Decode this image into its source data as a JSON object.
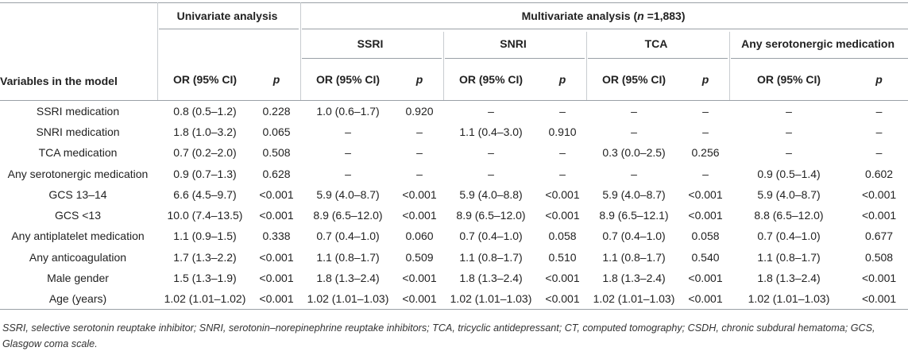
{
  "header": {
    "univariate": "Univariate analysis",
    "multivariate_prefix": "Multivariate analysis (",
    "multivariate_n": "n",
    "multivariate_suffix": " =1,883)",
    "groups": [
      "SSRI",
      "SNRI",
      "TCA",
      "Any serotonergic medication"
    ],
    "variables_label": "Variables in the model",
    "or_label": "OR (95% CI)",
    "p_label": "p"
  },
  "rows": [
    {
      "var": "SSRI medication",
      "cells": [
        "0.8 (0.5–1.2)",
        "0.228",
        "1.0 (0.6–1.7)",
        "0.920",
        "–",
        "–",
        "–",
        "–",
        "–",
        "–"
      ]
    },
    {
      "var": "SNRI medication",
      "cells": [
        "1.8 (1.0–3.2)",
        "0.065",
        "–",
        "–",
        "1.1 (0.4–3.0)",
        "0.910",
        "–",
        "–",
        "–",
        "–"
      ]
    },
    {
      "var": "TCA medication",
      "cells": [
        "0.7 (0.2–2.0)",
        "0.508",
        "–",
        "–",
        "–",
        "–",
        "0.3 (0.0–2.5)",
        "0.256",
        "–",
        "–"
      ]
    },
    {
      "var": "Any serotonergic medication",
      "cells": [
        "0.9 (0.7–1.3)",
        "0.628",
        "–",
        "–",
        "–",
        "–",
        "–",
        "–",
        "0.9 (0.5–1.4)",
        "0.602"
      ]
    },
    {
      "var": "GCS 13–14",
      "cells": [
        "6.6 (4.5–9.7)",
        "<0.001",
        "5.9 (4.0–8.7)",
        "<0.001",
        "5.9 (4.0–8.8)",
        "<0.001",
        "5.9 (4.0–8.7)",
        "<0.001",
        "5.9 (4.0–8.7)",
        "<0.001"
      ]
    },
    {
      "var": "GCS <13",
      "cells": [
        "10.0 (7.4–13.5)",
        "<0.001",
        "8.9 (6.5–12.0)",
        "<0.001",
        "8.9 (6.5–12.0)",
        "<0.001",
        "8.9 (6.5–12.1)",
        "<0.001",
        "8.8 (6.5–12.0)",
        "<0.001"
      ]
    },
    {
      "var": "Any antiplatelet medication",
      "cells": [
        "1.1 (0.9–1.5)",
        "0.338",
        "0.7 (0.4–1.0)",
        "0.060",
        "0.7 (0.4–1.0)",
        "0.058",
        "0.7 (0.4–1.0)",
        "0.058",
        "0.7 (0.4–1.0)",
        "0.677"
      ]
    },
    {
      "var": "Any anticoagulation",
      "cells": [
        "1.7 (1.3–2.2)",
        "<0.001",
        "1.1 (0.8–1.7)",
        "0.509",
        "1.1 (0.8–1.7)",
        "0.510",
        "1.1 (0.8–1.7)",
        "0.540",
        "1.1 (0.8–1.7)",
        "0.508"
      ]
    },
    {
      "var": "Male gender",
      "cells": [
        "1.5 (1.3–1.9)",
        "<0.001",
        "1.8 (1.3–2.4)",
        "<0.001",
        "1.8 (1.3–2.4)",
        "<0.001",
        "1.8 (1.3–2.4)",
        "<0.001",
        "1.8 (1.3–2.4)",
        "<0.001"
      ]
    },
    {
      "var": "Age (years)",
      "cells": [
        "1.02 (1.01–1.02)",
        "<0.001",
        "1.02 (1.01–1.03)",
        "<0.001",
        "1.02 (1.01–1.03)",
        "<0.001",
        "1.02 (1.01–1.03)",
        "<0.001",
        "1.02 (1.01–1.03)",
        "<0.001"
      ]
    }
  ],
  "footnote": "SSRI, selective serotonin reuptake inhibitor; SNRI, serotonin–norepinephrine reuptake inhibitors; TCA, tricyclic antidepressant; CT, computed tomography; CSDH, chronic subdural hematoma; GCS, Glasgow coma scale."
}
